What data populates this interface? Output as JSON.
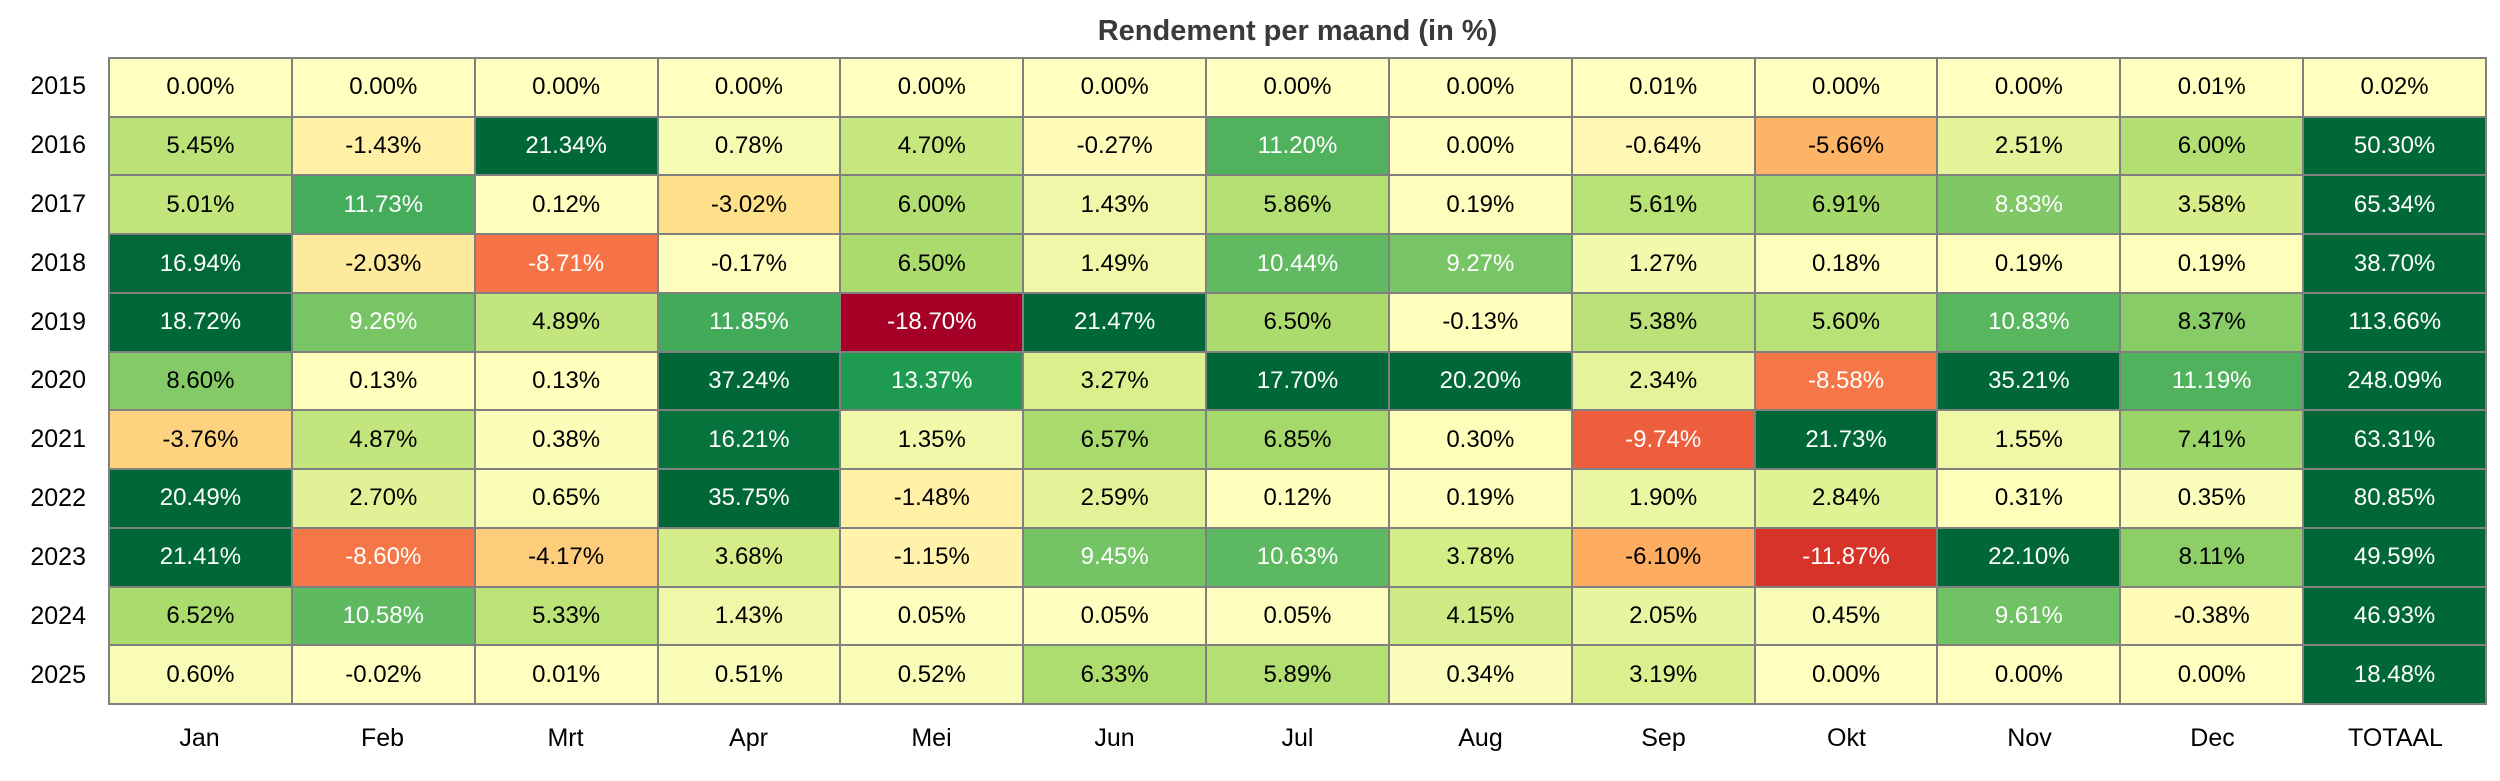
{
  "chart_data": {
    "type": "heatmap",
    "title": "Rendement per maand (in %)",
    "value_suffix": "%",
    "columns": [
      "Jan",
      "Feb",
      "Mrt",
      "Apr",
      "Mei",
      "Jun",
      "Jul",
      "Aug",
      "Sep",
      "Okt",
      "Nov",
      "Dec",
      "TOTAAL"
    ],
    "rows": [
      "2015",
      "2016",
      "2017",
      "2018",
      "2019",
      "2020",
      "2021",
      "2022",
      "2023",
      "2024",
      "2025"
    ],
    "values": [
      [
        0.0,
        0.0,
        0.0,
        0.0,
        0.0,
        0.0,
        0.0,
        0.0,
        0.01,
        0.0,
        0.0,
        0.01,
        0.02
      ],
      [
        5.45,
        -1.43,
        21.34,
        0.78,
        4.7,
        -0.27,
        11.2,
        0.0,
        -0.64,
        -5.66,
        2.51,
        6.0,
        50.3
      ],
      [
        5.01,
        11.73,
        0.12,
        -3.02,
        6.0,
        1.43,
        5.86,
        0.19,
        5.61,
        6.91,
        8.83,
        3.58,
        65.34
      ],
      [
        16.94,
        -2.03,
        -8.71,
        -0.17,
        6.5,
        1.49,
        10.44,
        9.27,
        1.27,
        0.18,
        0.19,
        0.19,
        38.7
      ],
      [
        18.72,
        9.26,
        4.89,
        11.85,
        -18.7,
        21.47,
        6.5,
        -0.13,
        5.38,
        5.6,
        10.83,
        8.37,
        113.66
      ],
      [
        8.6,
        0.13,
        0.13,
        37.24,
        13.37,
        3.27,
        17.7,
        20.2,
        2.34,
        -8.58,
        35.21,
        11.19,
        248.09
      ],
      [
        -3.76,
        4.87,
        0.38,
        16.21,
        1.35,
        6.57,
        6.85,
        0.3,
        -9.74,
        21.73,
        1.55,
        7.41,
        63.31
      ],
      [
        20.49,
        2.7,
        0.65,
        35.75,
        -1.48,
        2.59,
        0.12,
        0.19,
        1.9,
        2.84,
        0.31,
        0.35,
        80.85
      ],
      [
        21.41,
        -8.6,
        -4.17,
        3.68,
        -1.15,
        9.45,
        10.63,
        3.78,
        -6.1,
        -11.87,
        22.1,
        8.11,
        49.59
      ],
      [
        6.52,
        10.58,
        5.33,
        1.43,
        0.05,
        0.05,
        0.05,
        4.15,
        2.05,
        0.45,
        9.61,
        -0.38,
        46.93
      ],
      [
        0.6,
        -0.02,
        0.01,
        0.51,
        0.52,
        6.33,
        5.89,
        0.34,
        3.19,
        0.0,
        0.0,
        0.0,
        18.48
      ]
    ],
    "color_scale": {
      "name": "RdYlGn",
      "anchors": [
        [
          -1.0,
          "#a50026"
        ],
        [
          -0.8,
          "#d73027"
        ],
        [
          -0.6,
          "#f46d43"
        ],
        [
          -0.4,
          "#fdae61"
        ],
        [
          -0.2,
          "#fee08b"
        ],
        [
          0.0,
          "#ffffbf"
        ],
        [
          0.2,
          "#d9ef8b"
        ],
        [
          0.4,
          "#a6d96a"
        ],
        [
          0.6,
          "#66bd63"
        ],
        [
          0.8,
          "#1a9850"
        ],
        [
          1.0,
          "#006837"
        ]
      ],
      "negative_full_scale": 15,
      "positive_full_scale": 17,
      "grid_line_color": "#808080",
      "dark_text_color": "#000000",
      "light_text_color": "#ffffff"
    },
    "legend_position": "none",
    "grid": true
  }
}
